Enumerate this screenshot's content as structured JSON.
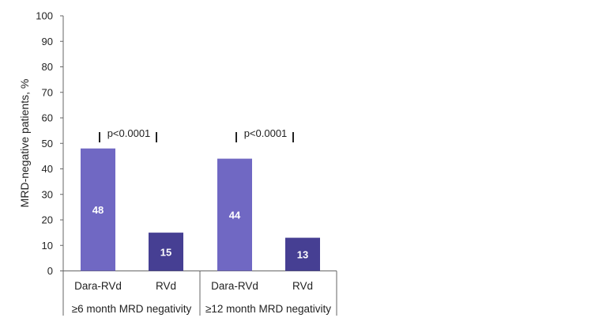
{
  "chart_data": {
    "type": "bar",
    "ylabel": "MRD-negative patients, %",
    "ylim": [
      0,
      100
    ],
    "yticks": [
      0,
      10,
      20,
      30,
      40,
      50,
      60,
      70,
      80,
      90,
      100
    ],
    "groups": [
      {
        "label": "≥6 month MRD negativity",
        "comparison": "p<0.0001",
        "bars": [
          {
            "category": "Dara-RVd",
            "value": 48,
            "color": "#7068c3"
          },
          {
            "category": "RVd",
            "value": 15,
            "color": "#463f93"
          }
        ]
      },
      {
        "label": "≥12 month MRD negativity",
        "comparison": "p<0.0001",
        "bars": [
          {
            "category": "Dara-RVd",
            "value": 44,
            "color": "#7068c3"
          },
          {
            "category": "RVd",
            "value": 13,
            "color": "#463f93"
          }
        ]
      }
    ]
  }
}
